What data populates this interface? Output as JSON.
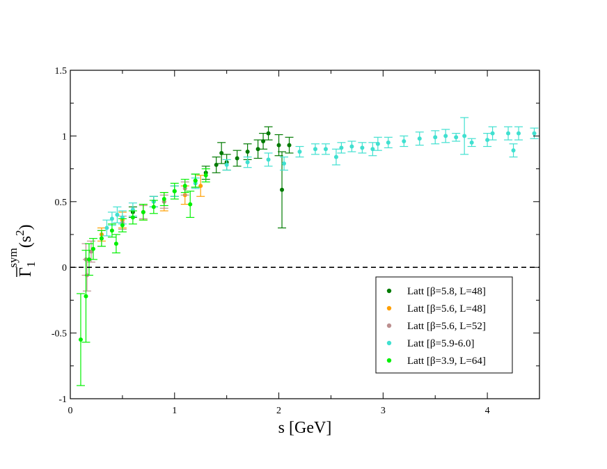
{
  "chart_data": {
    "type": "scatter",
    "xlabel": "s [GeV]",
    "ylabel": {
      "main": "Γ",
      "sub": "1",
      "sup": "sym",
      "arg": "(s",
      "arg_sup": "2",
      "arg_close": ")"
    },
    "xlim": [
      0,
      4.5
    ],
    "ylim": [
      -1,
      1.5
    ],
    "x_ticks": [
      0,
      1,
      2,
      3,
      4
    ],
    "x_tick_labels": [
      "0",
      "1",
      "2",
      "3",
      "4"
    ],
    "y_ticks": [
      -1,
      -0.5,
      0,
      0.5,
      1,
      1.5
    ],
    "y_tick_labels": [
      "-1",
      "-0.5",
      "0",
      "0.5",
      "1",
      "1.5"
    ],
    "grid": false,
    "reference_line": {
      "y": 0,
      "style": "dashed"
    },
    "legend_position": "bottom-right",
    "series": [
      {
        "name": "Latt [β=5.8, L=48]",
        "color": "#007a00",
        "points": [
          [
            0.6,
            0.42,
            0.04
          ],
          [
            0.8,
            0.5,
            0.04
          ],
          [
            1.0,
            0.58,
            0.04
          ],
          [
            1.2,
            0.66,
            0.05
          ],
          [
            1.3,
            0.72,
            0.05
          ],
          [
            1.4,
            0.78,
            0.06
          ],
          [
            1.45,
            0.87,
            0.08
          ],
          [
            1.5,
            0.8,
            0.06
          ],
          [
            1.6,
            0.83,
            0.06
          ],
          [
            1.7,
            0.88,
            0.06
          ],
          [
            1.8,
            0.9,
            0.07
          ],
          [
            1.85,
            0.96,
            0.06
          ],
          [
            1.9,
            1.02,
            0.05
          ],
          [
            2.0,
            0.93,
            0.08
          ],
          [
            2.03,
            0.59,
            0.29
          ],
          [
            2.1,
            0.93,
            0.06
          ]
        ]
      },
      {
        "name": "Latt [β=5.6, L=48]",
        "color": "#ff9f00",
        "points": [
          [
            0.3,
            0.25,
            0.05
          ],
          [
            0.5,
            0.36,
            0.06
          ],
          [
            0.7,
            0.42,
            0.06
          ],
          [
            0.9,
            0.5,
            0.07
          ],
          [
            1.1,
            0.55,
            0.07
          ],
          [
            1.25,
            0.62,
            0.08
          ]
        ]
      },
      {
        "name": "Latt [β=5.6, L=52]",
        "color": "#bc8f8f",
        "points": [
          [
            0.15,
            0.06,
            0.12
          ],
          [
            0.16,
            -0.06,
            0.12
          ],
          [
            0.2,
            0.12,
            0.08
          ],
          [
            0.3,
            0.22,
            0.06
          ],
          [
            0.5,
            0.34,
            0.05
          ],
          [
            0.7,
            0.42,
            0.05
          ],
          [
            0.9,
            0.5,
            0.05
          ],
          [
            1.1,
            0.6,
            0.05
          ]
        ]
      },
      {
        "name": "Latt [β=5.9-6.0]",
        "color": "#40e0d0",
        "points": [
          [
            0.35,
            0.3,
            0.06
          ],
          [
            0.4,
            0.37,
            0.05
          ],
          [
            0.45,
            0.4,
            0.06
          ],
          [
            0.5,
            0.38,
            0.05
          ],
          [
            0.6,
            0.44,
            0.05
          ],
          [
            0.8,
            0.5,
            0.04
          ],
          [
            1.0,
            0.58,
            0.04
          ],
          [
            1.2,
            0.64,
            0.04
          ],
          [
            1.5,
            0.78,
            0.04
          ],
          [
            1.7,
            0.8,
            0.04
          ],
          [
            1.9,
            0.82,
            0.05
          ],
          [
            2.05,
            0.79,
            0.05
          ],
          [
            2.2,
            0.88,
            0.04
          ],
          [
            2.35,
            0.9,
            0.04
          ],
          [
            2.45,
            0.9,
            0.04
          ],
          [
            2.55,
            0.84,
            0.06
          ],
          [
            2.6,
            0.91,
            0.04
          ],
          [
            2.7,
            0.92,
            0.04
          ],
          [
            2.8,
            0.91,
            0.04
          ],
          [
            2.9,
            0.9,
            0.05
          ],
          [
            2.95,
            0.94,
            0.05
          ],
          [
            3.05,
            0.95,
            0.04
          ],
          [
            3.2,
            0.96,
            0.04
          ],
          [
            3.35,
            0.98,
            0.05
          ],
          [
            3.5,
            0.99,
            0.05
          ],
          [
            3.6,
            1.0,
            0.05
          ],
          [
            3.7,
            0.99,
            0.03
          ],
          [
            3.78,
            1.0,
            0.14
          ],
          [
            3.85,
            0.95,
            0.03
          ],
          [
            4.0,
            0.97,
            0.05
          ],
          [
            4.05,
            1.02,
            0.05
          ],
          [
            4.2,
            1.02,
            0.05
          ],
          [
            4.25,
            0.89,
            0.05
          ],
          [
            4.3,
            1.02,
            0.05
          ],
          [
            4.45,
            1.02,
            0.04
          ]
        ]
      },
      {
        "name": "Latt [β=3.9, L=64]",
        "color": "#00f000",
        "points": [
          [
            0.1,
            -0.55,
            0.35
          ],
          [
            0.15,
            -0.22,
            0.35
          ],
          [
            0.18,
            0.06,
            0.12
          ],
          [
            0.22,
            0.14,
            0.08
          ],
          [
            0.3,
            0.22,
            0.06
          ],
          [
            0.4,
            0.28,
            0.05
          ],
          [
            0.44,
            0.18,
            0.07
          ],
          [
            0.5,
            0.32,
            0.05
          ],
          [
            0.6,
            0.38,
            0.05
          ],
          [
            0.7,
            0.42,
            0.06
          ],
          [
            0.8,
            0.46,
            0.05
          ],
          [
            0.9,
            0.52,
            0.05
          ],
          [
            1.0,
            0.58,
            0.06
          ],
          [
            1.1,
            0.62,
            0.05
          ],
          [
            1.15,
            0.48,
            0.1
          ],
          [
            1.2,
            0.66,
            0.05
          ],
          [
            1.3,
            0.7,
            0.05
          ]
        ]
      }
    ]
  }
}
